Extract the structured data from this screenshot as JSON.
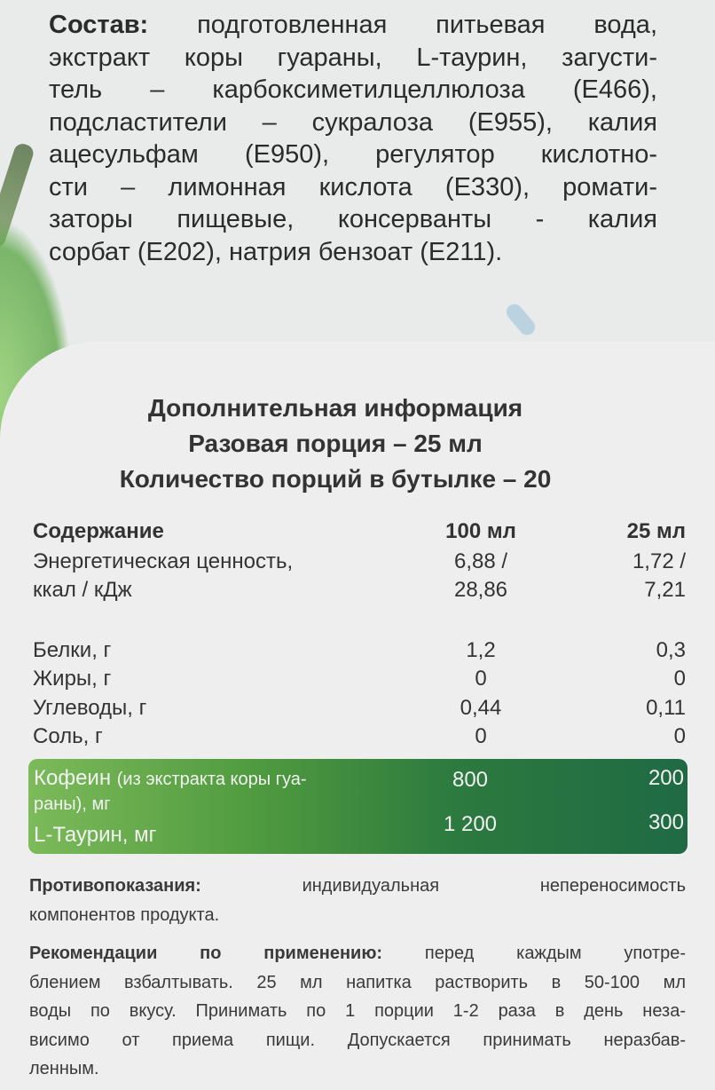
{
  "ingredients": {
    "label": "Состав:",
    "lines": [
      "подготовленная питьевая вода,",
      "экстракт коры гуараны, L-таурин, загусти-",
      "тель – карбоксиметилцеллюлоза (Е466),",
      "подсластители – сукралоза (Е955), калия",
      "ацесульфам (Е950), регулятор кислотно-",
      "сти – лимонная кислота (Е330), ромати-",
      "заторы пищевые, консерванты - калия",
      "сорбат (Е202), натрия бензоат (Е211)."
    ]
  },
  "info": {
    "title": "Дополнительная информация",
    "serving": "Разовая порция – 25 мл",
    "servings_count": "Количество порций в бутылке – 20"
  },
  "table": {
    "header": {
      "label": "Содержание",
      "col1": "100 мл",
      "col2": "25 мл"
    },
    "energy": {
      "label1": "Энергетическая ценность,",
      "label2": "ккал / кДж",
      "col1a": "6,88 /",
      "col1b": "28,86",
      "col2a": "1,72 /",
      "col2b": "7,21"
    },
    "rows": [
      {
        "label": "Белки, г",
        "col1": "1,2",
        "col2": "0,3"
      },
      {
        "label": "Жиры, г",
        "col1": "0",
        "col2": "0"
      },
      {
        "label": "Углеводы, г",
        "col1": "0,44",
        "col2": "0,11"
      },
      {
        "label": "Соль, г",
        "col1": "0",
        "col2": "0"
      }
    ],
    "highlight": [
      {
        "label": "Кофеин",
        "note1": "(из экстракта коры гуа-",
        "note2": "раны), мг",
        "col1": "800",
        "col2": "200"
      },
      {
        "label": "L-Таурин, мг",
        "col1": "1 200",
        "col2": "300"
      }
    ]
  },
  "contraindications": {
    "label": "Противопоказания:",
    "lines": [
      "индивидуальная непереносимость",
      "компонентов продукта."
    ]
  },
  "recommendations": {
    "label": "Рекомендации по применению:",
    "lines": [
      "перед каждым употре-",
      "блением взбалтывать. 25 мл напитка растворить в 50-100 мл",
      "воды по вкусу. Принимать по 1 порции 1-2 раза в день неза-",
      "висимо от приема пищи. Допускается принимать неразбав-",
      "ленным."
    ]
  },
  "colors": {
    "highlight_start": "#7cba5a",
    "highlight_end": "#1f6a44",
    "text": "#2b2b2b"
  }
}
